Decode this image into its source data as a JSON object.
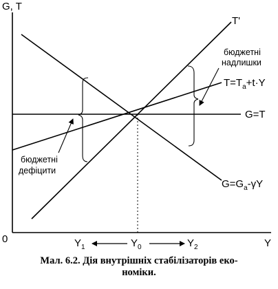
{
  "axes": {
    "y_label": "G, T",
    "x_label": "Y",
    "origin_label": "0"
  },
  "lines": {
    "t_prime": "T'",
    "tax": {
      "main": "T=T",
      "sub": "a",
      "rest": "+t·Y"
    },
    "gov_flat": "G=T",
    "gov": {
      "main": "G=G",
      "sub": "a",
      "rest": "-γY"
    }
  },
  "annotations": {
    "surplus": [
      "бюджетні",
      "надлишки"
    ],
    "deficit": [
      "бюджетні",
      "дефіцити"
    ]
  },
  "x_ticks": {
    "y1": {
      "main": "Y",
      "sub": "1"
    },
    "y0": {
      "main": "Y",
      "sub": "0"
    },
    "y2": {
      "main": "Y",
      "sub": "2"
    }
  },
  "caption": {
    "line1": "Мал. 6.2. Дія внутрішніх стабілізаторів еко-",
    "line2": "номіки."
  },
  "colors": {
    "ink": "#000000",
    "paper": "#ffffff"
  }
}
